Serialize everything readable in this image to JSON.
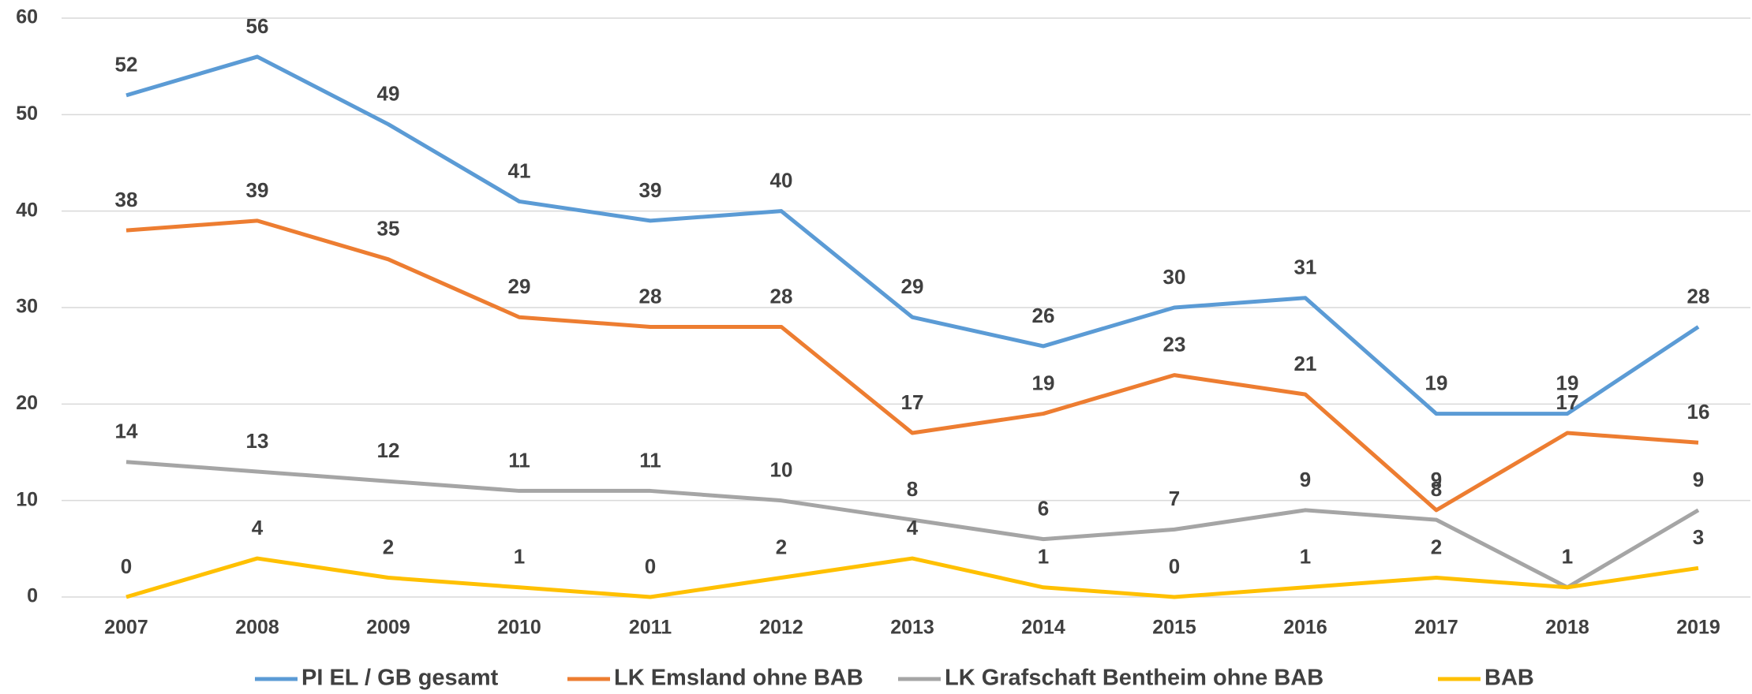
{
  "chart_data": {
    "type": "line",
    "categories": [
      "2007",
      "2008",
      "2009",
      "2010",
      "2011",
      "2012",
      "2013",
      "2014",
      "2015",
      "2016",
      "2017",
      "2018",
      "2019"
    ],
    "series": [
      {
        "name": "PI EL / GB gesamt",
        "color": "#5b9bd5",
        "values": [
          52,
          56,
          49,
          41,
          39,
          40,
          29,
          26,
          30,
          31,
          19,
          19,
          28
        ]
      },
      {
        "name": "LK Emsland ohne BAB",
        "color": "#ed7d31",
        "values": [
          38,
          39,
          35,
          29,
          28,
          28,
          17,
          19,
          23,
          21,
          9,
          17,
          16
        ]
      },
      {
        "name": "LK Grafschaft Bentheim ohne BAB",
        "color": "#a5a5a5",
        "values": [
          14,
          13,
          12,
          11,
          11,
          10,
          8,
          6,
          7,
          9,
          8,
          1,
          9
        ]
      },
      {
        "name": "BAB",
        "color": "#ffc000",
        "values": [
          0,
          4,
          2,
          1,
          0,
          2,
          4,
          1,
          0,
          1,
          2,
          1,
          3
        ]
      }
    ],
    "ylim": [
      0,
      60
    ],
    "yticks": [
      0,
      10,
      20,
      30,
      40,
      50,
      60
    ],
    "grid": true,
    "legend": "bottom"
  }
}
